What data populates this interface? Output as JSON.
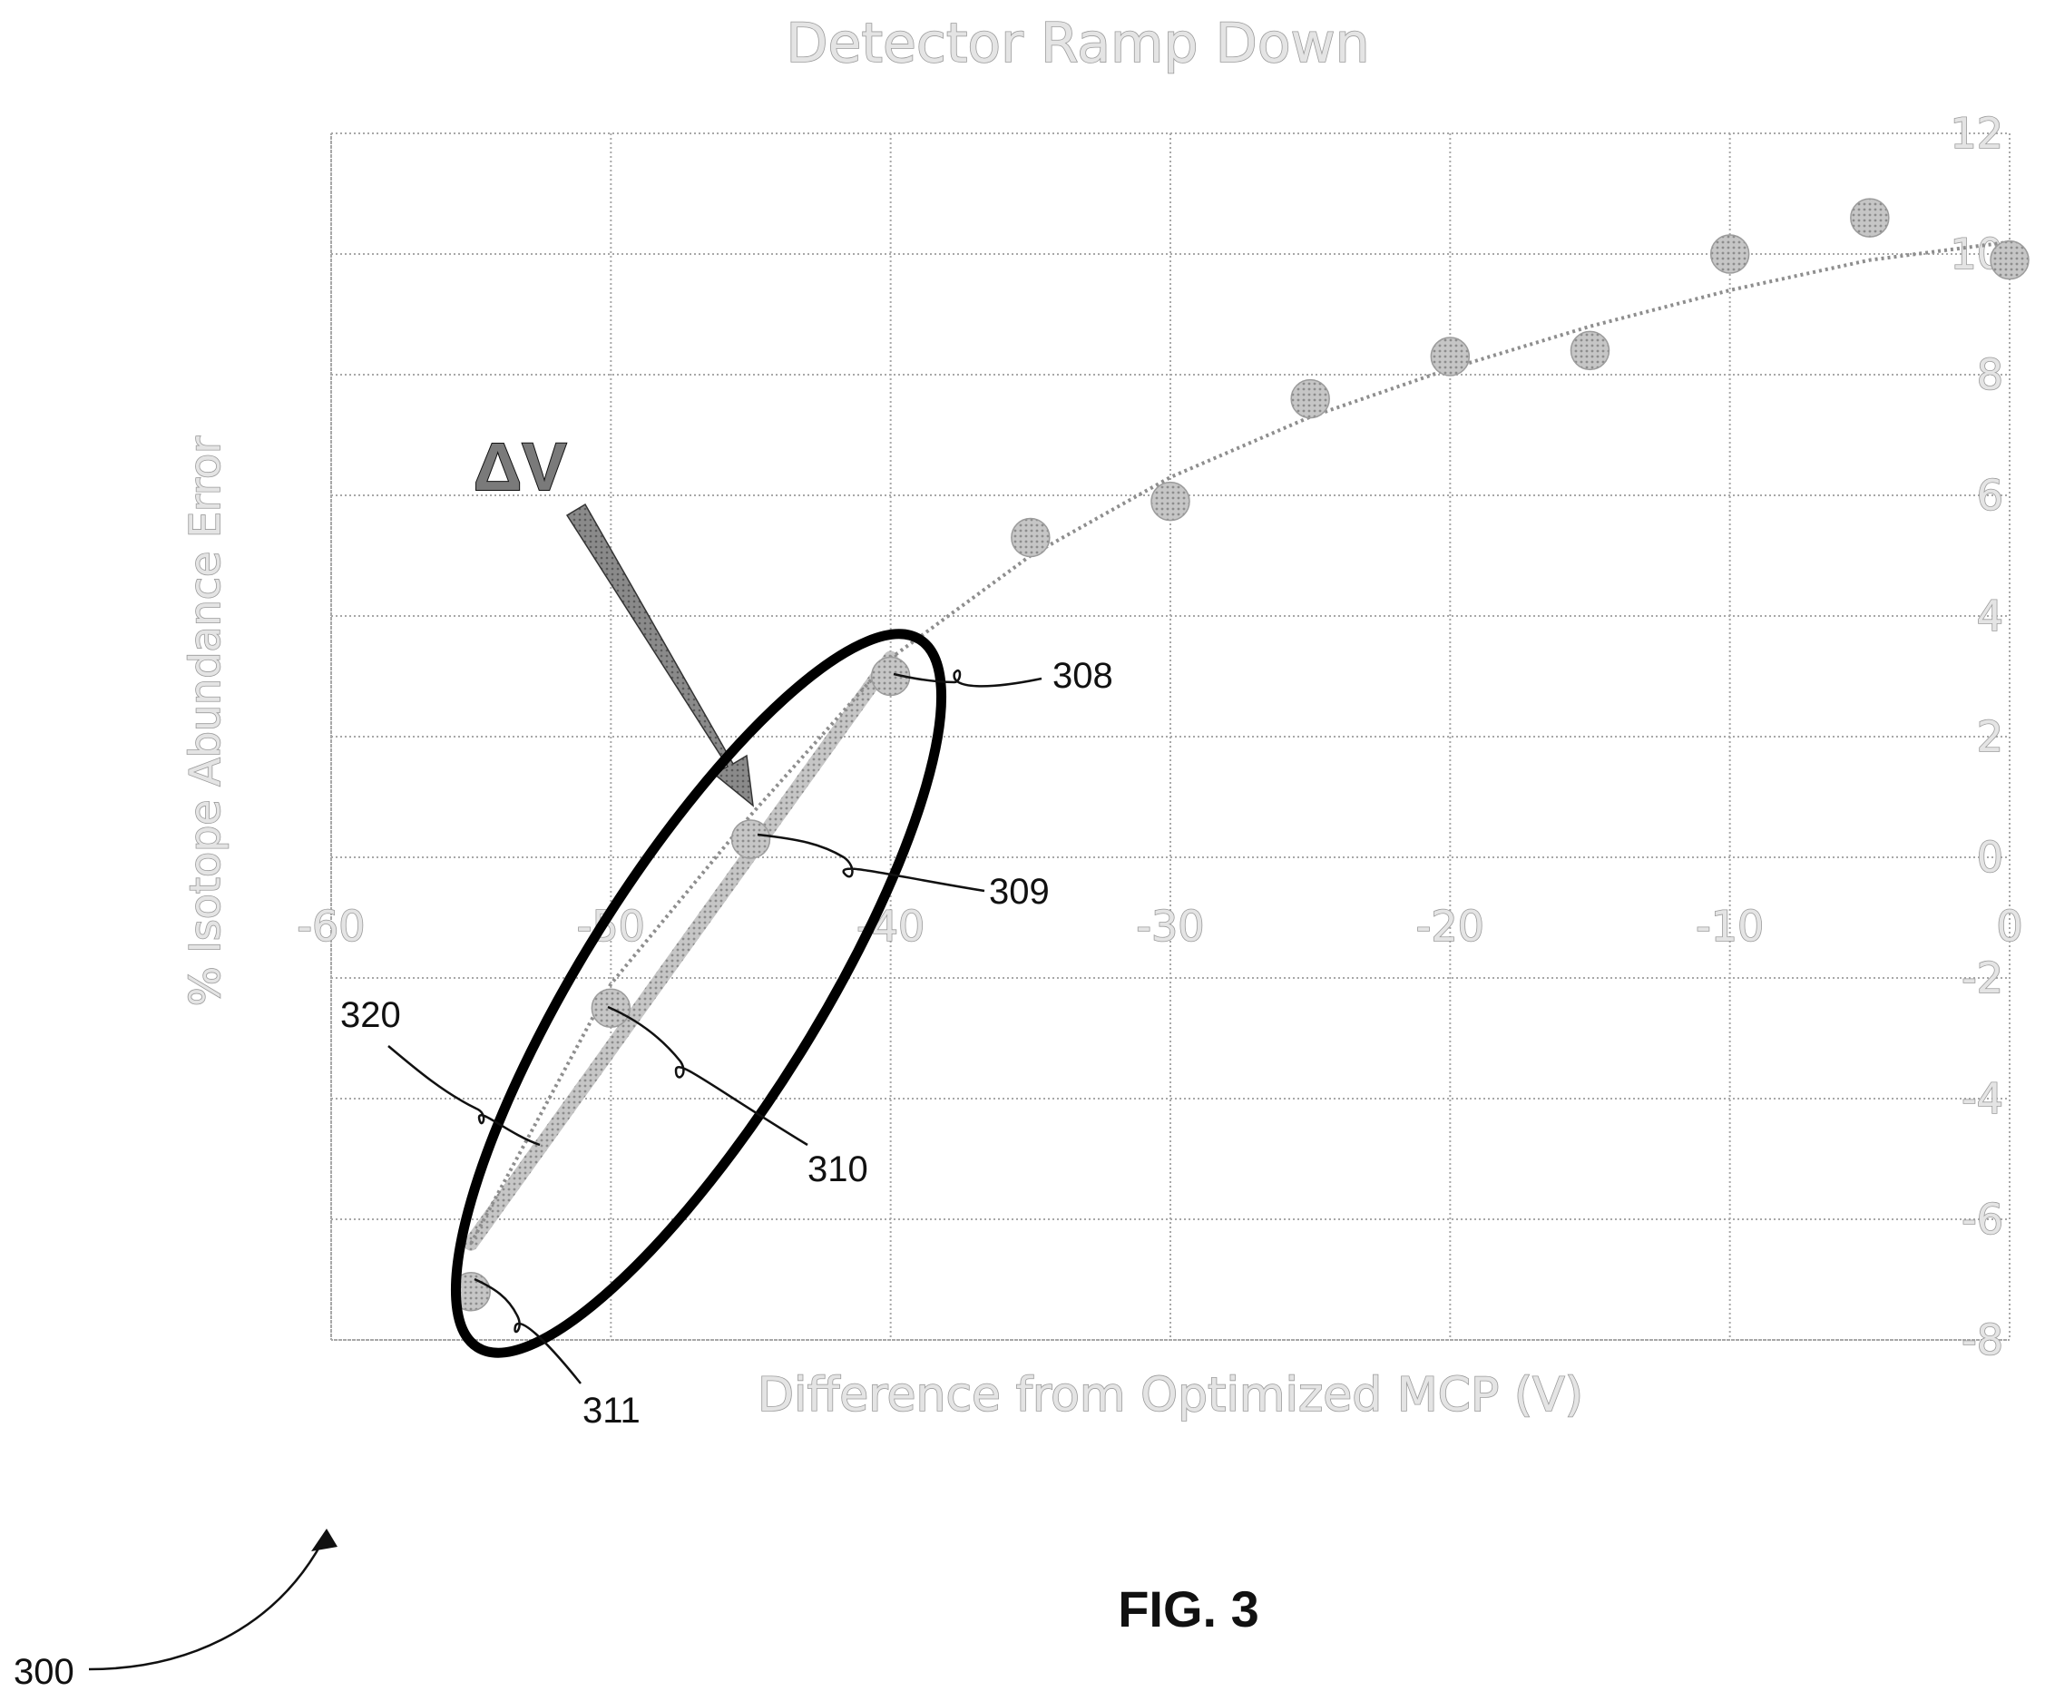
{
  "chart_data": {
    "type": "scatter",
    "title": "Detector Ramp Down",
    "xlabel": "Difference from Optimized MCP (V)",
    "ylabel": "% Isotope Abundance Error",
    "xlim": [
      -60,
      0
    ],
    "ylim": [
      -8,
      12
    ],
    "xticks": [
      "-60",
      "-50",
      "-40",
      "-30",
      "-20",
      "-10",
      "0"
    ],
    "yticks": [
      "12",
      "10",
      "8",
      "6",
      "4",
      "2",
      "0",
      "-2",
      "-4",
      "-6",
      "-8"
    ],
    "grid": true,
    "legend": "none",
    "series": [
      {
        "points": [
          {
            "x": -55,
            "y": -7.2
          },
          {
            "x": -50,
            "y": -2.5
          },
          {
            "x": -45,
            "y": 0.3
          },
          {
            "x": -40,
            "y": 3.0
          },
          {
            "x": -35,
            "y": 5.3
          },
          {
            "x": -30,
            "y": 5.9
          },
          {
            "x": -25,
            "y": 7.6
          },
          {
            "x": -20,
            "y": 8.3
          },
          {
            "x": -15,
            "y": 8.4
          },
          {
            "x": -10,
            "y": 10.0
          },
          {
            "x": -5,
            "y": 10.6
          },
          {
            "x": 0,
            "y": 9.9
          }
        ],
        "color": "#b0b0b0"
      }
    ],
    "trendline": [
      {
        "x": -55,
        "y": -6.4
      },
      {
        "x": -50,
        "y": -2.1
      },
      {
        "x": -45,
        "y": 0.7
      },
      {
        "x": -40,
        "y": 3.3
      },
      {
        "x": -35,
        "y": 5.0
      },
      {
        "x": -30,
        "y": 6.3
      },
      {
        "x": -25,
        "y": 7.3
      },
      {
        "x": -20,
        "y": 8.1
      },
      {
        "x": -15,
        "y": 8.8
      },
      {
        "x": -10,
        "y": 9.4
      },
      {
        "x": -5,
        "y": 9.9
      },
      {
        "x": 0,
        "y": 10.2
      }
    ],
    "linear_fit": [
      {
        "x": -55,
        "y": -6.4
      },
      {
        "x": -40,
        "y": 3.3
      }
    ]
  },
  "annotations": {
    "delta_v": "ΔV",
    "ref_308": "308",
    "ref_309": "309",
    "ref_310": "310",
    "ref_311": "311",
    "ref_320": "320",
    "ref_300": "300",
    "figure_label": "FIG. 3"
  },
  "colors": {
    "grid": "#a8a8a8",
    "markers": "#b0b0b0",
    "ellipse": "#000000",
    "arrow": "#7a7a7a",
    "annotation_text": "#111111"
  }
}
